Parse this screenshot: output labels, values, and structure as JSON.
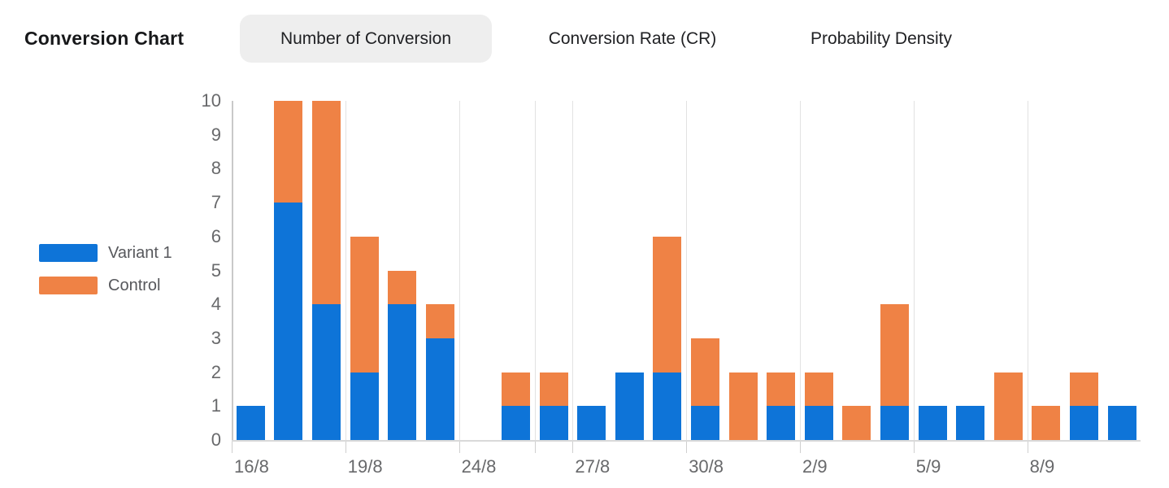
{
  "title": "Conversion Chart",
  "tabs": [
    {
      "label": "Number of Conversion",
      "active": true
    },
    {
      "label": "Conversion Rate (CR)",
      "active": false
    },
    {
      "label": "Probability Density",
      "active": false
    }
  ],
  "legend": {
    "items": [
      {
        "label": "Variant 1",
        "series": "variant1"
      },
      {
        "label": "Control",
        "series": "control"
      }
    ]
  },
  "colors": {
    "variant1": "#0e74d8",
    "control": "#ef8245",
    "grid": "#e2e2e2",
    "axis": "#d9d9d9",
    "axis_label": "#68696b"
  },
  "chart_data": {
    "type": "bar",
    "stacked": true,
    "title": "Number of Conversion",
    "xlabel": "",
    "ylabel": "",
    "ylim": [
      0,
      10
    ],
    "y_ticks": [
      0,
      1,
      2,
      3,
      4,
      5,
      6,
      7,
      8,
      9,
      10
    ],
    "grid": "vertical-only",
    "legend_position": "left",
    "num_slots": 24,
    "series": [
      {
        "name": "Variant 1",
        "color": "#0e74d8",
        "values": [
          1,
          7,
          4,
          2,
          4,
          3,
          0,
          1,
          1,
          1,
          2,
          2,
          1,
          0,
          1,
          1,
          0,
          1,
          1,
          1,
          0,
          0,
          1,
          1
        ]
      },
      {
        "name": "Control",
        "color": "#ef8245",
        "values": [
          0,
          3,
          6,
          4,
          1,
          1,
          0,
          1,
          1,
          0,
          0,
          4,
          2,
          2,
          1,
          1,
          1,
          3,
          0,
          0,
          2,
          1,
          1,
          0
        ]
      }
    ],
    "x_ticks": [
      {
        "slot": 0,
        "label": "16/8"
      },
      {
        "slot": 3,
        "label": "19/8"
      },
      {
        "slot": 6,
        "label": "24/8"
      },
      {
        "slot": 8,
        "label": ""
      },
      {
        "slot": 9,
        "label": "27/8"
      },
      {
        "slot": 12,
        "label": "30/8"
      },
      {
        "slot": 15,
        "label": "2/9"
      },
      {
        "slot": 18,
        "label": "5/9"
      },
      {
        "slot": 21,
        "label": "8/9"
      }
    ]
  }
}
